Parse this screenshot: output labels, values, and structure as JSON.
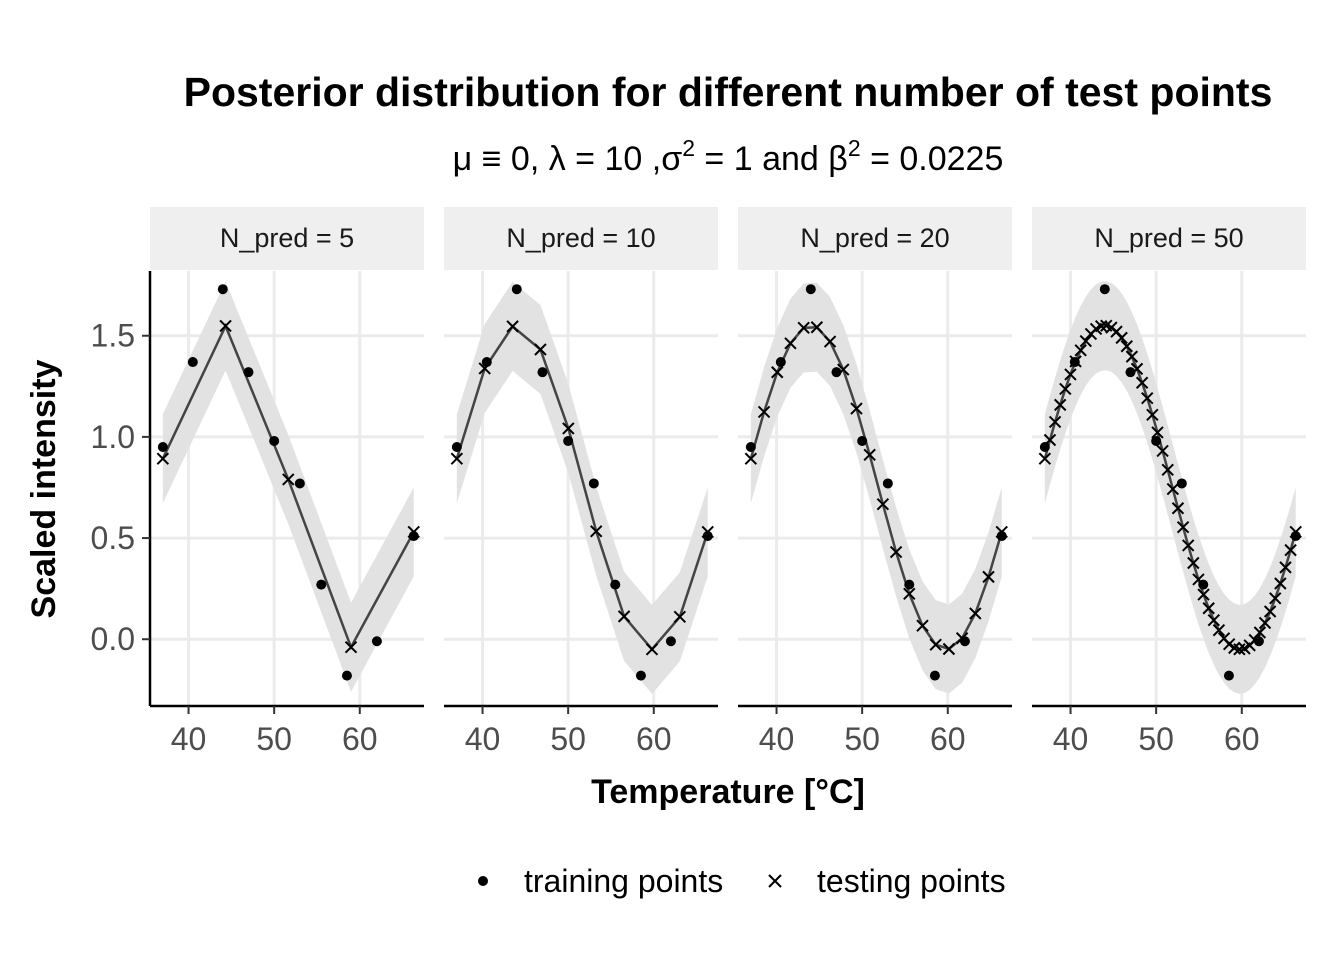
{
  "chart_data": {
    "type": "line",
    "title": "Posterior distribution for different number of test points",
    "subtitle": {
      "prefix": "μ ≡ 0, λ = 10 ,σ",
      "sup1": "2",
      "middle": " = 1 and β",
      "sup2": "2",
      "suffix": " = 0.0225"
    },
    "xlabel": "Temperature [°C]",
    "ylabel": "Scaled intensity",
    "xlim": [
      35.5,
      67.5
    ],
    "ylim": [
      -0.33,
      1.82
    ],
    "x_ticks": [
      40,
      50,
      60
    ],
    "x_tick_labels": [
      "40",
      "50",
      "60"
    ],
    "y_ticks": [
      0.0,
      0.5,
      1.0,
      1.5
    ],
    "y_tick_labels": [
      "0.0",
      "0.5",
      "1.0",
      "1.5"
    ],
    "grid": true,
    "legend": {
      "position": "bottom",
      "items": [
        {
          "label": "training points",
          "shape": "point"
        },
        {
          "label": "testing points",
          "shape": "cross"
        }
      ]
    },
    "training_points": {
      "x": [
        37.0,
        40.5,
        44.0,
        47.0,
        50.0,
        53.0,
        55.5,
        58.5,
        62.0,
        66.3
      ],
      "y": [
        0.95,
        1.37,
        1.73,
        1.32,
        0.98,
        0.77,
        0.27,
        -0.18,
        -0.01,
        0.51
      ]
    },
    "model": {
      "center": 44.0,
      "amplitude": 0.8,
      "half_period": 15.8,
      "offset": 0.75,
      "band_width": 0.22
    },
    "panels": [
      {
        "label": "N_pred = 5",
        "n_pred": 5
      },
      {
        "label": "N_pred = 10",
        "n_pred": 10
      },
      {
        "label": "N_pred = 20",
        "n_pred": 20
      },
      {
        "label": "N_pred = 50",
        "n_pred": 50
      }
    ],
    "colors": {
      "band": "#e2e2e2",
      "line": "#444444",
      "points": "#000000",
      "strip": "#efefef",
      "grid": "#ebebeb"
    }
  }
}
